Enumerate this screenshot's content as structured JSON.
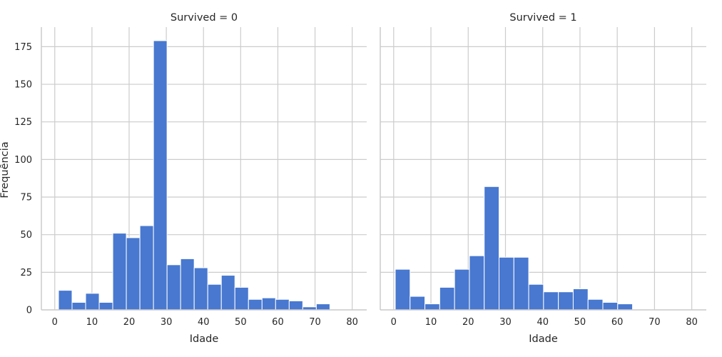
{
  "chart_data": {
    "type": "bar",
    "ylabel": "Frequência",
    "ylim": [
      0,
      188
    ],
    "y_ticks": [
      0,
      25,
      50,
      75,
      100,
      125,
      150,
      175
    ],
    "grid": true,
    "color": "#4878d0",
    "panels": [
      {
        "title": "Survived = 0",
        "xlabel": "Idade",
        "xlim": [
          -3.6,
          83.9
        ],
        "x_ticks": [
          0,
          10,
          20,
          30,
          40,
          50,
          60,
          70,
          80
        ],
        "bin_start": 1.0,
        "bin_width": 3.65,
        "values": [
          13,
          5,
          11,
          5,
          51,
          48,
          56,
          179,
          30,
          34,
          28,
          17,
          23,
          15,
          7,
          8,
          7,
          6,
          2,
          4,
          0,
          0
        ]
      },
      {
        "title": "Survived = 1",
        "xlabel": "Idade",
        "xlim": [
          -3.6,
          83.9
        ],
        "x_ticks": [
          0,
          10,
          20,
          30,
          40,
          50,
          60,
          70,
          80
        ],
        "bin_start": 0.42,
        "bin_width": 3.98,
        "values": [
          27,
          9,
          4,
          15,
          27,
          36,
          82,
          35,
          35,
          17,
          12,
          12,
          14,
          7,
          5,
          4,
          0,
          0,
          0,
          0
        ]
      }
    ]
  }
}
